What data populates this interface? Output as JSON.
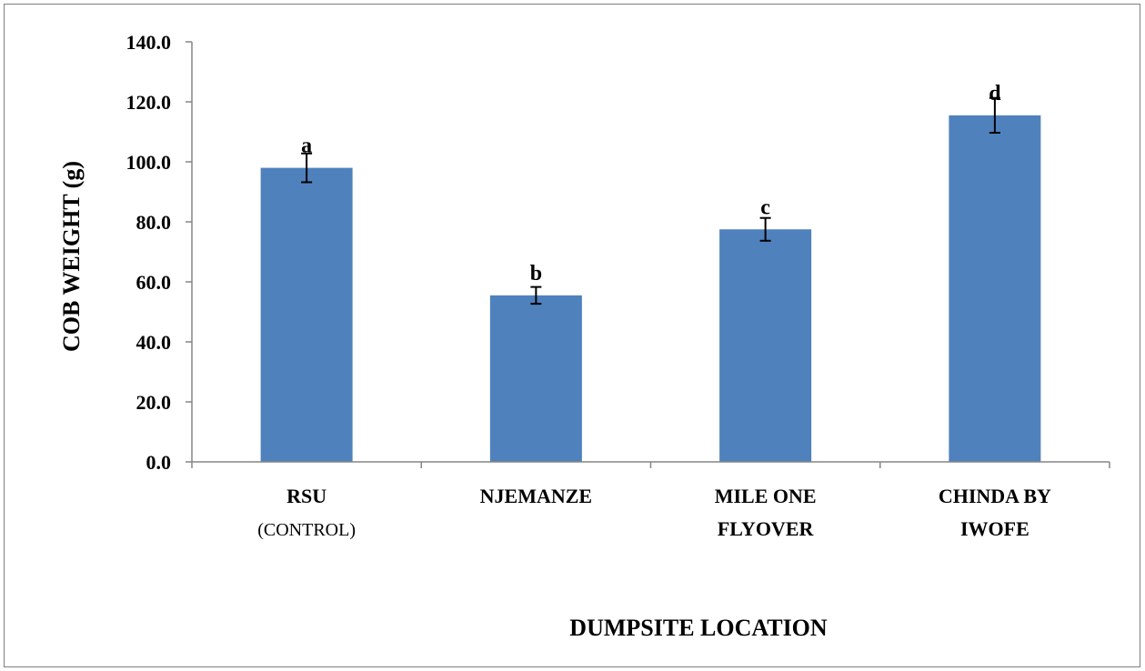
{
  "chart_data": {
    "type": "bar",
    "title": "",
    "xlabel": "DUMPSITE LOCATION",
    "ylabel": "COB WEIGHT (g)",
    "ylim": [
      0,
      140
    ],
    "yticks": [
      "0.0",
      "20.0",
      "40.0",
      "60.0",
      "80.0",
      "100.0",
      "120.0",
      "140.0"
    ],
    "grid": false,
    "legend": "none",
    "categories": [
      [
        "RSU",
        "(CONTROL)"
      ],
      [
        "NJEMANZE"
      ],
      [
        "MILE ONE",
        "FLYOVER"
      ],
      [
        "CHINDA BY",
        "IWOFE"
      ]
    ],
    "values": [
      98.0,
      55.5,
      77.5,
      115.5
    ],
    "errors": [
      4.8,
      2.8,
      3.8,
      5.8
    ],
    "data_labels": [
      "a",
      "b",
      "c",
      "d"
    ],
    "bar_color": "#4f81bd"
  }
}
